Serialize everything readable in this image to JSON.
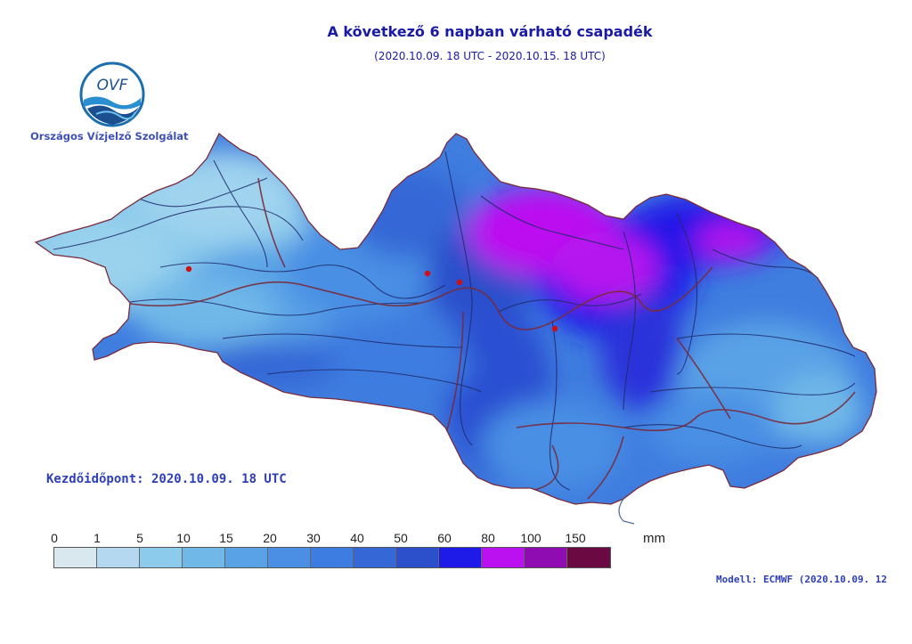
{
  "header": {
    "title": "A következő 6 napban várható csapadék",
    "subtitle": "(2020.10.09. 18 UTC - 2020.10.15. 18 UTC)"
  },
  "logo": {
    "text": "OVF",
    "organization": "Országos Vízjelző Szolgálat"
  },
  "start_time": "Kezdőidőpont: 2020.10.09. 18 UTC",
  "model": "Modell:  ECMWF (2020.10.09. 12",
  "legend": {
    "unit": "mm",
    "thresholds": [
      "0",
      "1",
      "5",
      "10",
      "15",
      "20",
      "30",
      "40",
      "50",
      "60",
      "80",
      "100",
      "150"
    ],
    "colors": [
      "#d9e8ef",
      "#b3d8ef",
      "#8ccbeb",
      "#6fb8e8",
      "#5aa2e6",
      "#4a8fe4",
      "#3d7ce0",
      "#3568d6",
      "#2c4fcb",
      "#1e1ae8",
      "#bb11f0",
      "#8f0cb3",
      "#6b0a42"
    ]
  },
  "map": {
    "region_colors": {
      "outline": "#7a2a3a",
      "river": "#1f2a6b",
      "city": "#d01010"
    }
  }
}
